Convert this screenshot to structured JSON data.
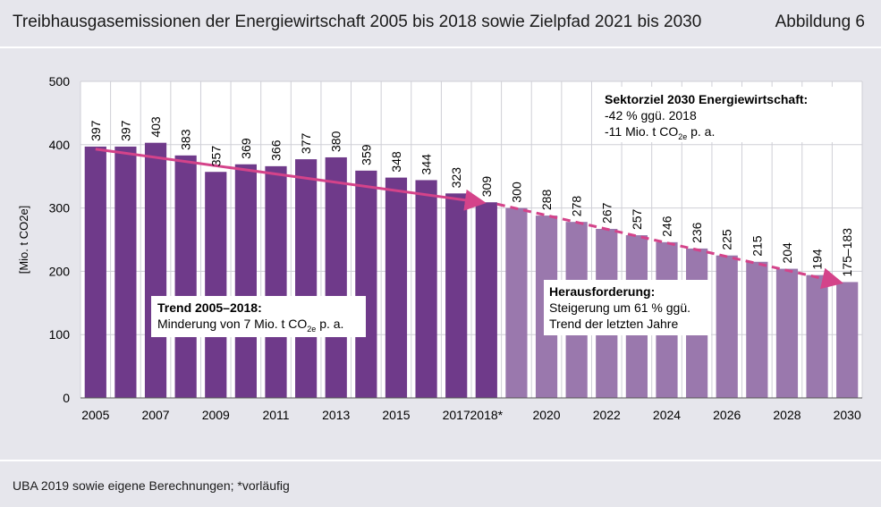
{
  "header": {
    "title": "Treibhausgasemissionen der Energiewirtschaft 2005 bis 2018 sowie Zielpfad 2021 bis 2030",
    "figure_label": "Abbildung 6"
  },
  "footer": {
    "source": "UBA 2019 sowie eigene Berechnungen; *vorläufig"
  },
  "colors": {
    "actual_bar": "#6f3a8a",
    "target_bar": "#9a78ad",
    "trend_arrow": "#d4438a",
    "background": "#e6e6ec"
  },
  "chart_data": {
    "type": "bar",
    "categories": [
      "2005",
      "2006",
      "2007",
      "2008",
      "2009",
      "2010",
      "2011",
      "2012",
      "2013",
      "2014",
      "2015",
      "2016",
      "2017",
      "2018*",
      "2019",
      "2020",
      "2021",
      "2022",
      "2023",
      "2024",
      "2025",
      "2026",
      "2027",
      "2028",
      "2029",
      "2030"
    ],
    "x_tick_labels": [
      "2005",
      "",
      "2007",
      "",
      "2009",
      "",
      "2011",
      "",
      "2013",
      "",
      "2015",
      "",
      "2017",
      "2018*",
      "",
      "2020",
      "",
      "2022",
      "",
      "2024",
      "",
      "2026",
      "",
      "2028",
      "",
      "2030"
    ],
    "values": [
      397,
      397,
      403,
      383,
      357,
      369,
      366,
      377,
      380,
      359,
      348,
      344,
      323,
      309,
      300,
      288,
      278,
      267,
      257,
      246,
      236,
      225,
      215,
      204,
      194,
      183
    ],
    "value_labels": [
      "397",
      "397",
      "403",
      "383",
      "357",
      "369",
      "366",
      "377",
      "380",
      "359",
      "348",
      "344",
      "323",
      "309",
      "300",
      "288",
      "278",
      "267",
      "257",
      "246",
      "236",
      "225",
      "215",
      "204",
      "194",
      "175–183"
    ],
    "actual_count": 14,
    "ylabel": "[Mio. t CO2e]",
    "ylim": [
      0,
      500
    ],
    "yticks": [
      0,
      100,
      200,
      300,
      400,
      500
    ],
    "grid": true,
    "trend_line": {
      "from": "2005",
      "to": "2018*",
      "start_value": 393,
      "end_value": 309
    },
    "target_line": {
      "from": "2018*",
      "to": "2030",
      "start_value": 309,
      "end_value": 183
    },
    "annotations": {
      "sector_goal": {
        "title": "Sektorziel 2030 Energiewirtschaft:",
        "line1": "-42 % ggü. 2018",
        "line2_prefix": "-11 Mio. t CO",
        "line2_sub": "2e",
        "line2_suffix": " p. a."
      },
      "trend": {
        "title": "Trend 2005–2018:",
        "line1_prefix": "Minderung von 7 Mio. t CO",
        "line1_sub": "2e",
        "line1_suffix": " p. a."
      },
      "challenge": {
        "title": "Herausforderung:",
        "line1": "Steigerung um 61 % ggü.",
        "line2": "Trend der letzten Jahre"
      }
    }
  }
}
